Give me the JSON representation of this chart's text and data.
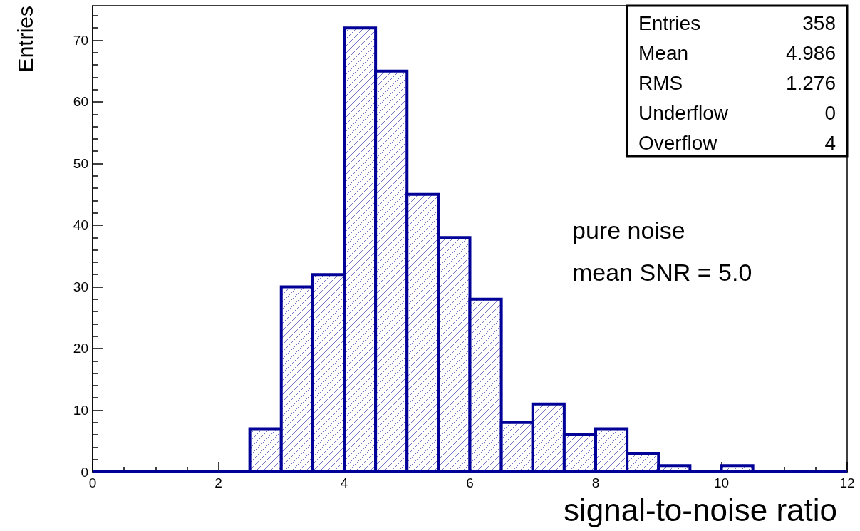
{
  "chart_data": {
    "type": "histogram",
    "xlabel": "signal-to-noise ratio",
    "ylabel": "Entries",
    "bins": [
      0,
      0.5,
      1,
      1.5,
      2,
      2.5,
      3,
      3.5,
      4,
      4.5,
      5,
      5.5,
      6,
      6.5,
      7,
      7.5,
      8,
      8.5,
      9,
      9.5,
      10,
      10.5,
      11,
      11.5,
      12
    ],
    "values": [
      0,
      0,
      0,
      0,
      0,
      7,
      30,
      32,
      72,
      65,
      45,
      38,
      28,
      8,
      11,
      6,
      7,
      3,
      1,
      0,
      1,
      0,
      0,
      0
    ],
    "color": "#000099",
    "xlim": [
      0,
      12
    ],
    "xticks": [
      0,
      2,
      4,
      6,
      8,
      10,
      12
    ],
    "ylim": [
      0,
      75.6
    ],
    "yticks": [
      0,
      10,
      20,
      30,
      40,
      50,
      60,
      70
    ],
    "annotations": [
      "Entries 358",
      "Mean 4.986",
      "RMS 1.276",
      "Underflow 0",
      "Overflow 4",
      "pure noise",
      "mean SNR = 5.0"
    ]
  }
}
